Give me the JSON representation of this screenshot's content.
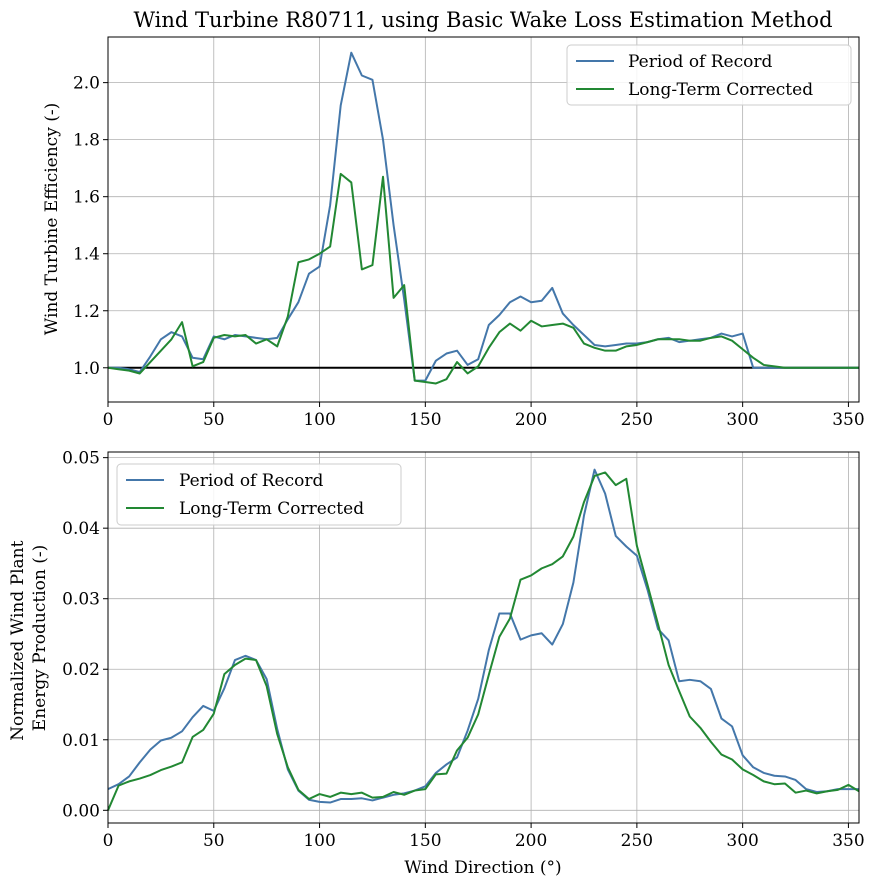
{
  "chart_data": [
    {
      "type": "line",
      "title": "Wind Turbine R80711, using Basic Wake Loss Estimation Method",
      "xlabel": "",
      "ylabel": "Wind Turbine Efficiency (-)",
      "xlim": [
        0,
        355
      ],
      "ylim": [
        0.88,
        2.16
      ],
      "xticks": [
        "0",
        "50",
        "100",
        "150",
        "200",
        "250",
        "300",
        "350"
      ],
      "yticks": [
        "1.0",
        "1.2",
        "1.4",
        "1.6",
        "1.8",
        "2.0"
      ],
      "grid": true,
      "legend": "top-right",
      "reference_line": 1.0,
      "x": [
        0,
        5,
        10,
        15,
        20,
        25,
        30,
        35,
        40,
        45,
        50,
        55,
        60,
        65,
        70,
        75,
        80,
        85,
        90,
        95,
        100,
        105,
        110,
        115,
        120,
        125,
        130,
        135,
        140,
        145,
        150,
        155,
        160,
        165,
        170,
        175,
        180,
        185,
        190,
        195,
        200,
        205,
        210,
        215,
        220,
        225,
        230,
        235,
        240,
        245,
        250,
        255,
        260,
        265,
        270,
        275,
        280,
        285,
        290,
        295,
        300,
        305,
        310,
        315,
        320,
        325,
        330,
        335,
        340,
        345,
        350,
        355
      ],
      "series": [
        {
          "name": "Period of Record",
          "color": "#4477aa",
          "values": [
            1.0,
            1.0,
            0.995,
            0.985,
            1.04,
            1.1,
            1.125,
            1.11,
            1.035,
            1.03,
            1.11,
            1.1,
            1.115,
            1.11,
            1.105,
            1.1,
            1.105,
            1.17,
            1.23,
            1.33,
            1.355,
            1.57,
            1.92,
            2.105,
            2.025,
            2.01,
            1.8,
            1.5,
            1.24,
            0.955,
            0.955,
            1.025,
            1.05,
            1.06,
            1.01,
            1.03,
            1.15,
            1.185,
            1.23,
            1.25,
            1.23,
            1.235,
            1.28,
            1.19,
            1.15,
            1.115,
            1.08,
            1.075,
            1.08,
            1.085,
            1.085,
            1.09,
            1.1,
            1.105,
            1.09,
            1.095,
            1.1,
            1.105,
            1.12,
            1.11,
            1.12,
            1.0,
            1.0,
            1.0,
            1.0,
            1.0,
            1.0,
            1.0,
            1.0,
            1.0,
            1.0,
            1.0
          ]
        },
        {
          "name": "Long-Term Corrected",
          "color": "#228833",
          "values": [
            1.0,
            0.995,
            0.99,
            0.98,
            1.02,
            1.06,
            1.1,
            1.16,
            1.005,
            1.02,
            1.105,
            1.115,
            1.11,
            1.115,
            1.085,
            1.1,
            1.075,
            1.18,
            1.37,
            1.38,
            1.4,
            1.425,
            1.68,
            1.65,
            1.345,
            1.36,
            1.67,
            1.245,
            1.29,
            0.955,
            0.95,
            0.945,
            0.96,
            1.02,
            0.98,
            1.005,
            1.07,
            1.125,
            1.155,
            1.13,
            1.165,
            1.145,
            1.15,
            1.155,
            1.14,
            1.085,
            1.07,
            1.06,
            1.06,
            1.075,
            1.08,
            1.09,
            1.1,
            1.1,
            1.1,
            1.095,
            1.095,
            1.105,
            1.11,
            1.095,
            1.065,
            1.035,
            1.01,
            1.005,
            1.0,
            1.0,
            1.0,
            1.0,
            1.0,
            1.0,
            1.0,
            1.0
          ]
        }
      ]
    },
    {
      "type": "line",
      "title": "",
      "xlabel": "Wind Direction (°)",
      "ylabel": "Normalized Wind Plant Energy Production (-)",
      "ylabel_lines": [
        "Normalized Wind Plant",
        "Energy Production (-)"
      ],
      "xlim": [
        0,
        355
      ],
      "ylim": [
        -0.0018,
        0.0508
      ],
      "xticks": [
        "0",
        "50",
        "100",
        "150",
        "200",
        "250",
        "300",
        "350"
      ],
      "yticks": [
        "0.00",
        "0.01",
        "0.02",
        "0.03",
        "0.04",
        "0.05"
      ],
      "grid": true,
      "legend": "top-left",
      "x": [
        0,
        5,
        10,
        15,
        20,
        25,
        30,
        35,
        40,
        45,
        50,
        55,
        60,
        65,
        70,
        75,
        80,
        85,
        90,
        95,
        100,
        105,
        110,
        115,
        120,
        125,
        130,
        135,
        140,
        145,
        150,
        155,
        160,
        165,
        170,
        175,
        180,
        185,
        190,
        195,
        200,
        205,
        210,
        215,
        220,
        225,
        230,
        235,
        240,
        245,
        250,
        255,
        260,
        265,
        270,
        275,
        280,
        285,
        290,
        295,
        300,
        305,
        310,
        315,
        320,
        325,
        330,
        335,
        340,
        345,
        350,
        355
      ],
      "series": [
        {
          "name": "Period of Record",
          "color": "#4477aa",
          "values": [
            0.003,
            0.0037,
            0.0048,
            0.0068,
            0.0086,
            0.0099,
            0.0103,
            0.0112,
            0.0132,
            0.0148,
            0.0141,
            0.0173,
            0.0213,
            0.0219,
            0.0213,
            0.0186,
            0.0115,
            0.0058,
            0.0028,
            0.0015,
            0.0012,
            0.0011,
            0.0016,
            0.0016,
            0.0017,
            0.0014,
            0.0018,
            0.0022,
            0.0024,
            0.0028,
            0.0034,
            0.0053,
            0.0065,
            0.0075,
            0.0113,
            0.0158,
            0.0227,
            0.0279,
            0.0279,
            0.0242,
            0.0248,
            0.0251,
            0.0235,
            0.0264,
            0.0323,
            0.0418,
            0.0483,
            0.0449,
            0.0389,
            0.0374,
            0.0361,
            0.0313,
            0.0257,
            0.0241,
            0.0183,
            0.0185,
            0.0183,
            0.0172,
            0.013,
            0.0119,
            0.0078,
            0.0061,
            0.0053,
            0.0049,
            0.0048,
            0.0043,
            0.003,
            0.0026,
            0.0027,
            0.003,
            0.003,
            0.003
          ]
        },
        {
          "name": "Long-Term Corrected",
          "color": "#228833",
          "values": [
            0.0,
            0.0035,
            0.0041,
            0.0045,
            0.005,
            0.0057,
            0.0062,
            0.0068,
            0.0104,
            0.0114,
            0.0137,
            0.0193,
            0.0206,
            0.0215,
            0.0213,
            0.0176,
            0.0108,
            0.0061,
            0.0029,
            0.0016,
            0.0023,
            0.0019,
            0.0025,
            0.0023,
            0.0025,
            0.0018,
            0.0019,
            0.0026,
            0.0022,
            0.0028,
            0.003,
            0.0051,
            0.0052,
            0.0085,
            0.0103,
            0.0136,
            0.0192,
            0.0246,
            0.0272,
            0.0327,
            0.0333,
            0.0343,
            0.0349,
            0.036,
            0.0388,
            0.0437,
            0.0474,
            0.0479,
            0.0461,
            0.047,
            0.0375,
            0.032,
            0.0264,
            0.0206,
            0.0169,
            0.0133,
            0.0117,
            0.0097,
            0.0079,
            0.0072,
            0.0058,
            0.005,
            0.0041,
            0.0037,
            0.0038,
            0.0025,
            0.0028,
            0.0024,
            0.0027,
            0.0029,
            0.0036,
            0.0027
          ]
        }
      ]
    }
  ]
}
